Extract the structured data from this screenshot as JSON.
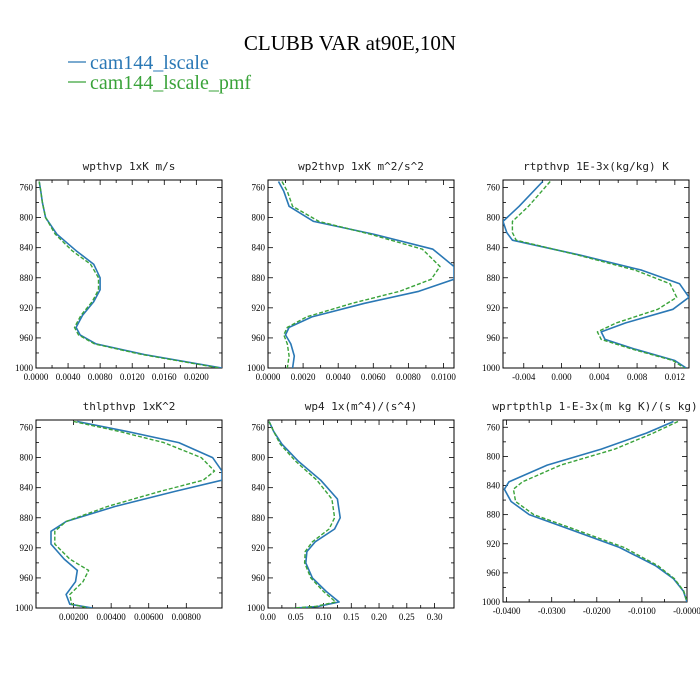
{
  "title": "CLUBB VAR at90E,10N",
  "legend": [
    {
      "label": "cam144_lscale",
      "color": "#2a78b5"
    },
    {
      "label": "cam144_lscale_pmf",
      "color": "#3aa33a"
    }
  ],
  "chart_data": [
    {
      "type": "line",
      "title": "wpthvp  1xK m/s",
      "xlim": [
        0,
        0.0232
      ],
      "ylim": [
        750,
        1000
      ],
      "xticks": [
        0,
        0.004,
        0.008,
        0.012,
        0.016,
        0.02
      ],
      "xtick_labels": [
        "0.0000",
        "0.0040",
        "0.0080",
        "0.0120",
        "0.0160",
        "0.0200"
      ],
      "yticks": [
        760,
        800,
        840,
        880,
        920,
        960,
        1000
      ],
      "ytick_labels": [
        "760",
        "800",
        "840",
        "880",
        "920",
        "960",
        "1000"
      ],
      "series": [
        {
          "name": "cam144_lscale",
          "x": [
            0.0004,
            0.0006,
            0.0008,
            0.0012,
            0.0026,
            0.005,
            0.0072,
            0.008,
            0.008,
            0.0072,
            0.0058,
            0.005,
            0.0055,
            0.0075,
            0.0135,
            0.0232
          ],
          "y": [
            752,
            765,
            780,
            800,
            822,
            844,
            862,
            880,
            896,
            912,
            930,
            946,
            956,
            968,
            982,
            1000
          ]
        },
        {
          "name": "cam144_lscale_pmf",
          "x": [
            0.0004,
            0.0006,
            0.0008,
            0.0012,
            0.0024,
            0.0045,
            0.0068,
            0.0078,
            0.0078,
            0.007,
            0.0056,
            0.0048,
            0.0053,
            0.0073,
            0.0132,
            0.0229
          ],
          "y": [
            752,
            765,
            780,
            800,
            822,
            844,
            862,
            880,
            896,
            912,
            930,
            946,
            956,
            968,
            982,
            1000
          ]
        }
      ]
    },
    {
      "type": "line",
      "title": "wp2thvp  1xK m^2/s^2",
      "xlim": [
        0,
        0.0106
      ],
      "ylim": [
        750,
        1000
      ],
      "xticks": [
        0,
        0.002,
        0.004,
        0.006,
        0.008,
        0.01
      ],
      "xtick_labels": [
        "0.0000",
        "0.0020",
        "0.0040",
        "0.0060",
        "0.0080",
        "0.0100"
      ],
      "yticks": [
        760,
        800,
        840,
        880,
        920,
        960,
        1000
      ],
      "ytick_labels": [
        "760",
        "800",
        "840",
        "880",
        "920",
        "960",
        "1000"
      ],
      "series": [
        {
          "name": "cam144_lscale",
          "x": [
            0.0006,
            0.0009,
            0.0012,
            0.0026,
            0.006,
            0.0094,
            0.0106,
            0.0106,
            0.0086,
            0.0055,
            0.0025,
            0.0012,
            0.001,
            0.0013,
            0.0015,
            0.0014
          ],
          "y": [
            752,
            765,
            785,
            805,
            822,
            842,
            865,
            882,
            898,
            914,
            932,
            946,
            956,
            968,
            984,
            1000
          ]
        },
        {
          "name": "cam144_lscale_pmf",
          "x": [
            0.0008,
            0.0011,
            0.0014,
            0.0029,
            0.0058,
            0.0088,
            0.0098,
            0.0093,
            0.0075,
            0.0048,
            0.0022,
            0.0011,
            0.0009,
            0.0011,
            0.0012,
            0.0011
          ],
          "y": [
            752,
            765,
            785,
            805,
            822,
            842,
            865,
            882,
            898,
            914,
            932,
            946,
            956,
            968,
            984,
            1000
          ]
        }
      ]
    },
    {
      "type": "line",
      "title": "rtpthvp  1E-3x(kg/kg) K",
      "xlim": [
        -0.0062,
        0.0135
      ],
      "ylim": [
        750,
        1000
      ],
      "xticks": [
        -0.004,
        0,
        0.004,
        0.008,
        0.012
      ],
      "xtick_labels": [
        "-0.004",
        "0.000",
        "0.004",
        "0.008",
        "0.012"
      ],
      "yticks": [
        760,
        800,
        840,
        880,
        920,
        960,
        1000
      ],
      "ytick_labels": [
        "760",
        "800",
        "840",
        "880",
        "920",
        "960",
        "1000"
      ],
      "series": [
        {
          "name": "cam144_lscale",
          "x": [
            -0.002,
            -0.0045,
            -0.0062,
            -0.0058,
            -0.0052,
            0.002,
            0.0085,
            0.0125,
            0.0135,
            0.0118,
            0.0068,
            0.0042,
            0.0046,
            0.0078,
            0.012,
            0.0132
          ],
          "y": [
            752,
            785,
            805,
            820,
            830,
            850,
            870,
            888,
            906,
            922,
            940,
            952,
            962,
            975,
            990,
            1000
          ]
        },
        {
          "name": "cam144_lscale_pmf",
          "x": [
            -0.0012,
            -0.0035,
            -0.0052,
            -0.0052,
            -0.0048,
            0.0018,
            0.0078,
            0.0115,
            0.0122,
            0.0102,
            0.0058,
            0.0038,
            0.0042,
            0.0075,
            0.0118,
            0.013
          ],
          "y": [
            752,
            785,
            805,
            820,
            830,
            850,
            870,
            888,
            906,
            922,
            940,
            952,
            962,
            975,
            990,
            1000
          ]
        }
      ]
    },
    {
      "type": "line",
      "title": "thlpthvp  1xK^2",
      "xlim": [
        0,
        0.0099
      ],
      "ylim": [
        750,
        1000
      ],
      "xticks": [
        0.002,
        0.004,
        0.006,
        0.008
      ],
      "xtick_labels": [
        "0.00200",
        "0.00400",
        "0.00600",
        "0.00800"
      ],
      "yticks": [
        760,
        800,
        840,
        880,
        920,
        960,
        1000
      ],
      "ytick_labels": [
        "760",
        "800",
        "840",
        "880",
        "920",
        "960",
        "1000"
      ],
      "series": [
        {
          "name": "cam144_lscale",
          "x": [
            0.0022,
            0.0048,
            0.0076,
            0.0094,
            0.0099,
            0.0099,
            0.0074,
            0.0042,
            0.0016,
            0.0008,
            0.0008,
            0.0015,
            0.0022,
            0.0021,
            0.0016,
            0.0018,
            0.003
          ],
          "y": [
            752,
            765,
            780,
            800,
            818,
            830,
            845,
            865,
            885,
            898,
            915,
            935,
            950,
            965,
            982,
            995,
            1000
          ]
        },
        {
          "name": "cam144_lscale_pmf",
          "x": [
            0.002,
            0.0044,
            0.0068,
            0.0088,
            0.0095,
            0.0089,
            0.0066,
            0.0038,
            0.0016,
            0.001,
            0.001,
            0.0018,
            0.0028,
            0.0025,
            0.0018,
            0.0019,
            0.0028
          ],
          "y": [
            752,
            765,
            780,
            800,
            818,
            830,
            845,
            865,
            885,
            898,
            915,
            935,
            950,
            965,
            982,
            995,
            1000
          ]
        }
      ]
    },
    {
      "type": "line",
      "title": "wp4  1x(m^4)/(s^4)",
      "xlim": [
        0,
        0.335
      ],
      "ylim": [
        750,
        1000
      ],
      "xticks": [
        0,
        0.05,
        0.1,
        0.15,
        0.2,
        0.25,
        0.3
      ],
      "xtick_labels": [
        "0.00",
        "0.05",
        "0.10",
        "0.15",
        "0.20",
        "0.25",
        "0.30"
      ],
      "yticks": [
        760,
        800,
        840,
        880,
        920,
        960,
        1000
      ],
      "ytick_labels": [
        "760",
        "800",
        "840",
        "880",
        "920",
        "960",
        "1000"
      ],
      "series": [
        {
          "name": "cam144_lscale",
          "x": [
            0.002,
            0.01,
            0.025,
            0.055,
            0.095,
            0.125,
            0.13,
            0.12,
            0.085,
            0.07,
            0.068,
            0.08,
            0.105,
            0.128,
            0.09,
            0.05
          ],
          "y": [
            752,
            765,
            782,
            805,
            830,
            855,
            880,
            895,
            912,
            925,
            940,
            960,
            978,
            992,
            998,
            1000
          ]
        },
        {
          "name": "cam144_lscale_pmf",
          "x": [
            0.002,
            0.01,
            0.022,
            0.05,
            0.088,
            0.115,
            0.12,
            0.11,
            0.08,
            0.067,
            0.066,
            0.077,
            0.1,
            0.122,
            0.085,
            0.045
          ],
          "y": [
            752,
            765,
            782,
            805,
            830,
            855,
            880,
            895,
            912,
            925,
            940,
            960,
            978,
            992,
            998,
            1000
          ]
        }
      ]
    },
    {
      "type": "line",
      "title": "wprtpthlp  1-E-3x(m kg K)/(s kg)",
      "xlim": [
        -0.0408,
        0
      ],
      "ylim": [
        750,
        1000
      ],
      "xticks": [
        -0.04,
        -0.03,
        -0.02,
        -0.01,
        0
      ],
      "xtick_labels": [
        "-0.0400",
        "-0.0300",
        "-0.0200",
        "-0.0100",
        "-0.0000"
      ],
      "yticks": [
        760,
        800,
        840,
        880,
        920,
        960,
        1000
      ],
      "ytick_labels": [
        "760",
        "800",
        "840",
        "880",
        "920",
        "960",
        "1000"
      ],
      "series": [
        {
          "name": "cam144_lscale",
          "x": [
            -0.003,
            -0.009,
            -0.019,
            -0.031,
            -0.0395,
            -0.0405,
            -0.039,
            -0.035,
            -0.026,
            -0.015,
            -0.007,
            -0.003,
            -0.0008,
            0
          ],
          "y": [
            752,
            768,
            790,
            812,
            835,
            845,
            862,
            880,
            900,
            925,
            950,
            968,
            985,
            1000
          ]
        },
        {
          "name": "cam144_lscale_pmf",
          "x": [
            -0.002,
            -0.0075,
            -0.016,
            -0.028,
            -0.0365,
            -0.0385,
            -0.038,
            -0.034,
            -0.025,
            -0.014,
            -0.0065,
            -0.0028,
            -0.0007,
            0
          ],
          "y": [
            752,
            768,
            790,
            812,
            835,
            845,
            862,
            880,
            900,
            925,
            950,
            968,
            985,
            1000
          ]
        }
      ]
    }
  ]
}
